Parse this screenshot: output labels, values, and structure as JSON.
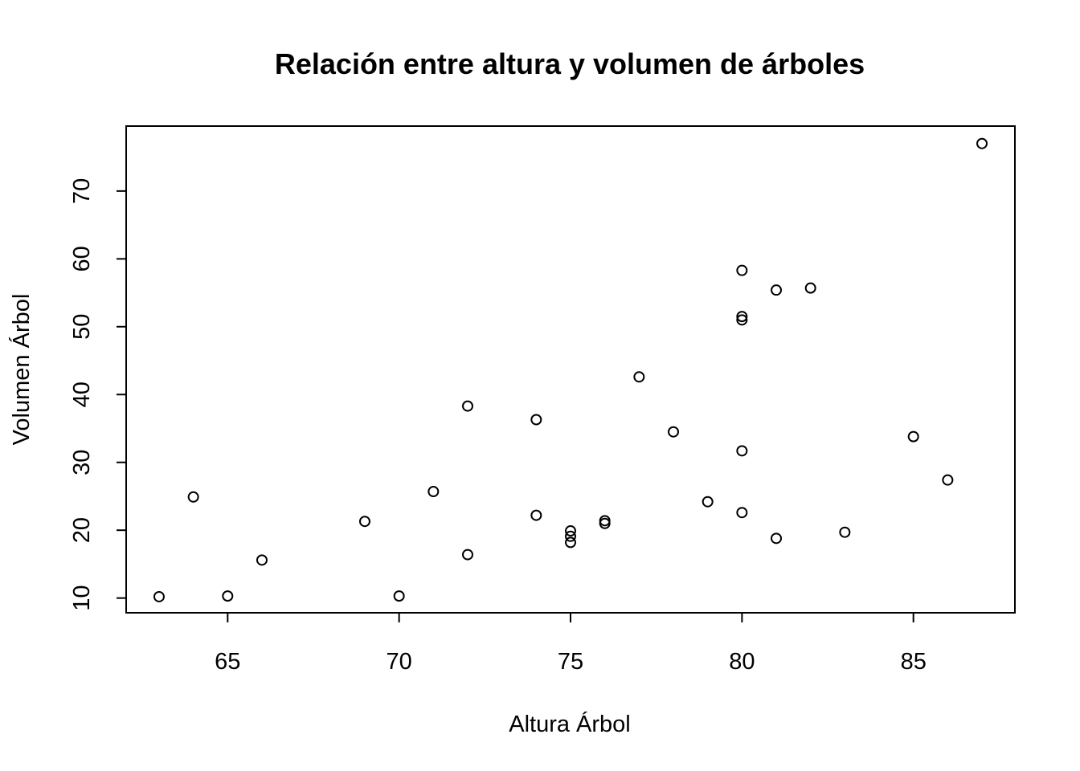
{
  "chart_data": {
    "type": "scatter",
    "title": "Relación entre altura y volumen de árboles",
    "xlabel": "Altura Árbol",
    "ylabel": "Volumen Árbol",
    "xlim": [
      62.04,
      87.96
    ],
    "ylim": [
      7.828,
      79.572
    ],
    "x_ticks": [
      65,
      70,
      75,
      80,
      85
    ],
    "y_ticks": [
      10,
      20,
      30,
      40,
      50,
      60,
      70
    ],
    "grid": false,
    "marker": "open-circle",
    "points": [
      {
        "x": 70,
        "y": 10.3
      },
      {
        "x": 65,
        "y": 10.3
      },
      {
        "x": 63,
        "y": 10.2
      },
      {
        "x": 72,
        "y": 16.4
      },
      {
        "x": 81,
        "y": 18.8
      },
      {
        "x": 83,
        "y": 19.7
      },
      {
        "x": 66,
        "y": 15.6
      },
      {
        "x": 75,
        "y": 18.2
      },
      {
        "x": 80,
        "y": 22.6
      },
      {
        "x": 75,
        "y": 19.9
      },
      {
        "x": 79,
        "y": 24.2
      },
      {
        "x": 76,
        "y": 21.0
      },
      {
        "x": 76,
        "y": 21.4
      },
      {
        "x": 69,
        "y": 21.3
      },
      {
        "x": 75,
        "y": 19.1
      },
      {
        "x": 74,
        "y": 22.2
      },
      {
        "x": 85,
        "y": 33.8
      },
      {
        "x": 86,
        "y": 27.4
      },
      {
        "x": 71,
        "y": 25.7
      },
      {
        "x": 64,
        "y": 24.9
      },
      {
        "x": 78,
        "y": 34.5
      },
      {
        "x": 80,
        "y": 31.7
      },
      {
        "x": 74,
        "y": 36.3
      },
      {
        "x": 72,
        "y": 38.3
      },
      {
        "x": 77,
        "y": 42.6
      },
      {
        "x": 81,
        "y": 55.4
      },
      {
        "x": 82,
        "y": 55.7
      },
      {
        "x": 80,
        "y": 58.3
      },
      {
        "x": 80,
        "y": 51.5
      },
      {
        "x": 80,
        "y": 51.0
      },
      {
        "x": 87,
        "y": 77.0
      }
    ]
  }
}
